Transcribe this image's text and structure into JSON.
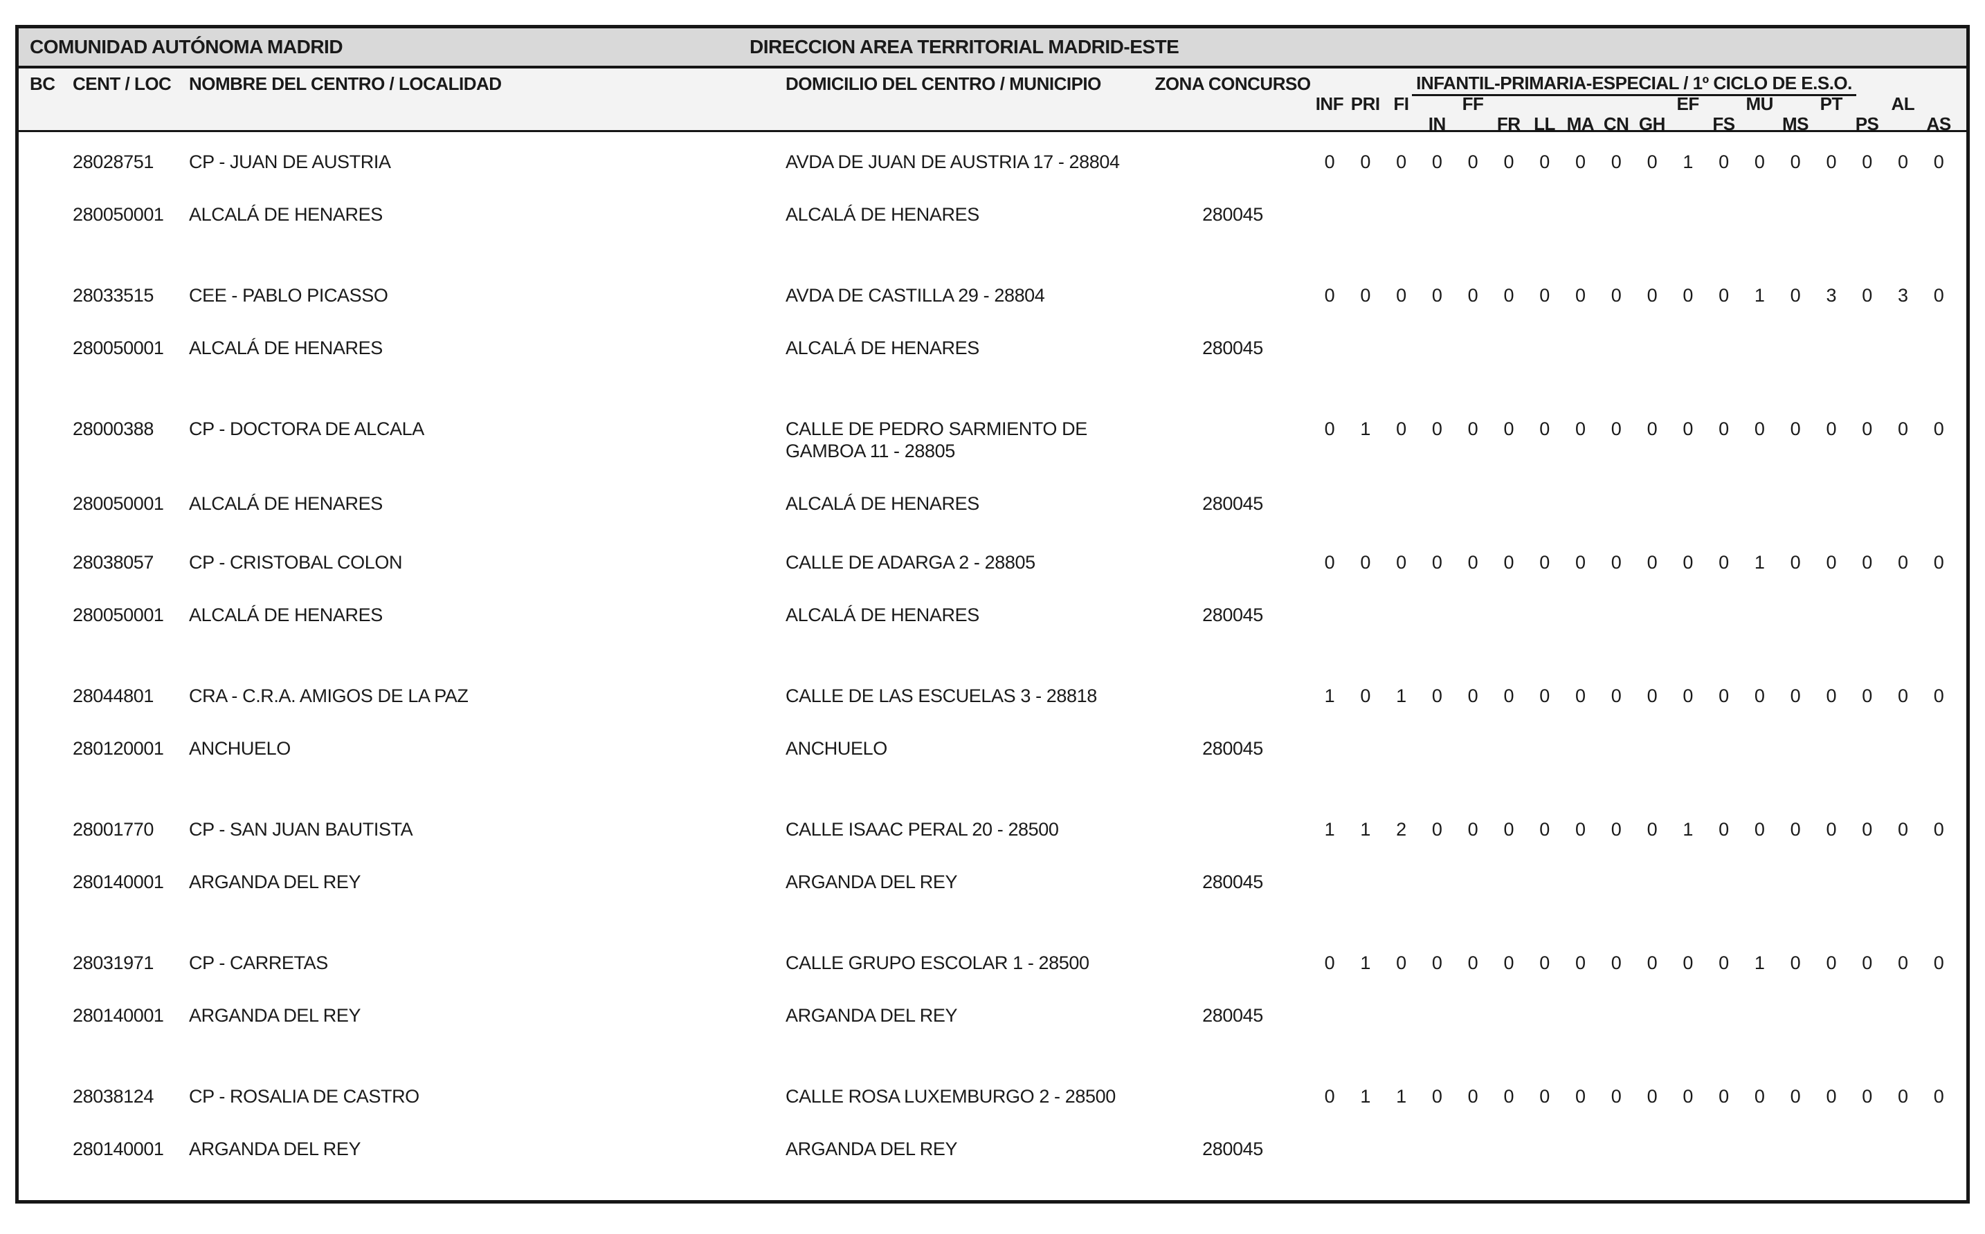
{
  "header": {
    "region_title": "COMUNIDAD AUTÓNOMA MADRID",
    "territorial_title": "DIRECCION AREA TERRITORIAL MADRID-ESTE"
  },
  "columns": {
    "bc": "BC",
    "cent_loc": "CENT / LOC",
    "nombre": "NOMBRE DEL CENTRO / LOCALIDAD",
    "domicilio": "DOMICILIO DEL CENTRO / MUNICIPIO",
    "zona": "ZONA CONCURSO",
    "group_title": "INFANTIL-PRIMARIA-ESPECIAL / 1º CICLO DE E.S.O.",
    "subjects": [
      {
        "label": "INF",
        "row": "top"
      },
      {
        "label": "PRI",
        "row": "top"
      },
      {
        "label": "FI",
        "row": "top"
      },
      {
        "label": "IN",
        "row": "bottom"
      },
      {
        "label": "FF",
        "row": "top"
      },
      {
        "label": "FR",
        "row": "bottom"
      },
      {
        "label": "LL",
        "row": "bottom"
      },
      {
        "label": "MA",
        "row": "bottom"
      },
      {
        "label": "CN",
        "row": "bottom"
      },
      {
        "label": "GH",
        "row": "bottom"
      },
      {
        "label": "EF",
        "row": "top"
      },
      {
        "label": "FS",
        "row": "bottom"
      },
      {
        "label": "MU",
        "row": "top"
      },
      {
        "label": "MS",
        "row": "bottom"
      },
      {
        "label": "PT",
        "row": "top"
      },
      {
        "label": "PS",
        "row": "bottom"
      },
      {
        "label": "AL",
        "row": "top"
      },
      {
        "label": "AS",
        "row": "bottom"
      }
    ]
  },
  "rows": [
    {
      "center_code": "28028751",
      "center_name": "CP - JUAN DE AUSTRIA",
      "address": "AVDA DE JUAN DE AUSTRIA 17 - 28804",
      "locality_code": "280050001",
      "locality": "ALCALÁ DE HENARES",
      "municipality": "ALCALÁ DE HENARES",
      "zona": "280045",
      "values": [
        0,
        0,
        0,
        0,
        0,
        0,
        0,
        0,
        0,
        0,
        1,
        0,
        0,
        0,
        0,
        0,
        0,
        0
      ]
    },
    {
      "center_code": "28033515",
      "center_name": "CEE - PABLO PICASSO",
      "address": "AVDA DE CASTILLA 29 - 28804",
      "locality_code": "280050001",
      "locality": "ALCALÁ DE HENARES",
      "municipality": "ALCALÁ DE HENARES",
      "zona": "280045",
      "values": [
        0,
        0,
        0,
        0,
        0,
        0,
        0,
        0,
        0,
        0,
        0,
        0,
        1,
        0,
        3,
        0,
        3,
        0
      ]
    },
    {
      "center_code": "28000388",
      "center_name": "CP - DOCTORA DE ALCALA",
      "address": "CALLE DE PEDRO SARMIENTO DE GAMBOA 11 - 28805",
      "locality_code": "280050001",
      "locality": "ALCALÁ DE HENARES",
      "municipality": "ALCALÁ DE HENARES",
      "zona": "280045",
      "values": [
        0,
        1,
        0,
        0,
        0,
        0,
        0,
        0,
        0,
        0,
        0,
        0,
        0,
        0,
        0,
        0,
        0,
        0
      ]
    },
    {
      "center_code": "28038057",
      "center_name": "CP - CRISTOBAL COLON",
      "address": "CALLE DE ADARGA 2 - 28805",
      "locality_code": "280050001",
      "locality": "ALCALÁ DE HENARES",
      "municipality": "ALCALÁ DE HENARES",
      "zona": "280045",
      "values": [
        0,
        0,
        0,
        0,
        0,
        0,
        0,
        0,
        0,
        0,
        0,
        0,
        1,
        0,
        0,
        0,
        0,
        0
      ]
    },
    {
      "center_code": "28044801",
      "center_name": "CRA - C.R.A. AMIGOS DE LA PAZ",
      "address": "CALLE DE LAS ESCUELAS 3 - 28818",
      "locality_code": "280120001",
      "locality": "ANCHUELO",
      "municipality": "ANCHUELO",
      "zona": "280045",
      "values": [
        1,
        0,
        1,
        0,
        0,
        0,
        0,
        0,
        0,
        0,
        0,
        0,
        0,
        0,
        0,
        0,
        0,
        0
      ]
    },
    {
      "center_code": "28001770",
      "center_name": "CP - SAN JUAN BAUTISTA",
      "address": "CALLE ISAAC PERAL 20 - 28500",
      "locality_code": "280140001",
      "locality": "ARGANDA DEL REY",
      "municipality": "ARGANDA DEL REY",
      "zona": "280045",
      "values": [
        1,
        1,
        2,
        0,
        0,
        0,
        0,
        0,
        0,
        0,
        1,
        0,
        0,
        0,
        0,
        0,
        0,
        0
      ]
    },
    {
      "center_code": "28031971",
      "center_name": "CP - CARRETAS",
      "address": "CALLE GRUPO ESCOLAR 1 - 28500",
      "locality_code": "280140001",
      "locality": "ARGANDA DEL REY",
      "municipality": "ARGANDA DEL REY",
      "zona": "280045",
      "values": [
        0,
        1,
        0,
        0,
        0,
        0,
        0,
        0,
        0,
        0,
        0,
        0,
        1,
        0,
        0,
        0,
        0,
        0
      ]
    },
    {
      "center_code": "28038124",
      "center_name": "CP - ROSALIA DE CASTRO",
      "address": "CALLE ROSA LUXEMBURGO 2 - 28500",
      "locality_code": "280140001",
      "locality": "ARGANDA DEL REY",
      "municipality": "ARGANDA DEL REY",
      "zona": "280045",
      "values": [
        0,
        1,
        1,
        0,
        0,
        0,
        0,
        0,
        0,
        0,
        0,
        0,
        0,
        0,
        0,
        0,
        0,
        0
      ]
    }
  ]
}
